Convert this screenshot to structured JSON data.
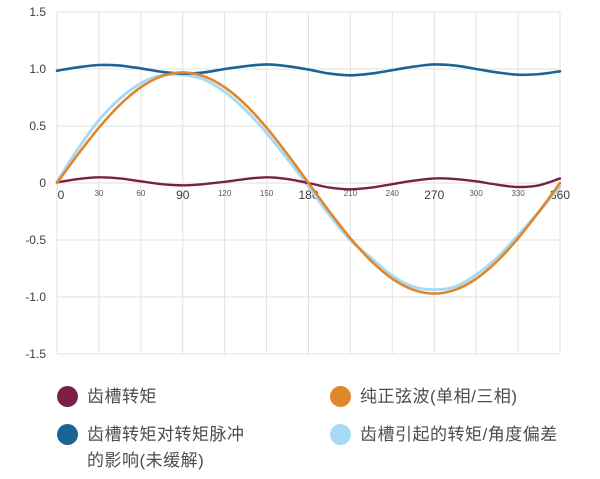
{
  "chart_data": {
    "type": "line",
    "title": "",
    "xlabel": "",
    "ylabel": "",
    "xlim": [
      0,
      360
    ],
    "ylim": [
      -1.5,
      1.5
    ],
    "grid": true,
    "legend_position": "bottom",
    "x_ticks": [
      {
        "label": "0",
        "value": 0,
        "major": true
      },
      {
        "label": "30",
        "value": 30,
        "major": false
      },
      {
        "label": "60",
        "value": 60,
        "major": false
      },
      {
        "label": "90",
        "value": 90,
        "major": true
      },
      {
        "label": "120",
        "value": 120,
        "major": false
      },
      {
        "label": "150",
        "value": 150,
        "major": false
      },
      {
        "label": "180",
        "value": 180,
        "major": true
      },
      {
        "label": "210",
        "value": 210,
        "major": false
      },
      {
        "label": "240",
        "value": 240,
        "major": false
      },
      {
        "label": "270",
        "value": 270,
        "major": true
      },
      {
        "label": "300",
        "value": 300,
        "major": false
      },
      {
        "label": "330",
        "value": 330,
        "major": false
      },
      {
        "label": "360",
        "value": 360,
        "major": true
      }
    ],
    "y_ticks": [
      {
        "label": "1.5",
        "value": 1.5
      },
      {
        "label": "1.0",
        "value": 1.0
      },
      {
        "label": "0.5",
        "value": 0.5
      },
      {
        "label": "0",
        "value": 0
      },
      {
        "label": "-0.5",
        "value": -0.5
      },
      {
        "label": "-1.0",
        "value": -1.0
      },
      {
        "label": "-1.5",
        "value": -1.5
      }
    ],
    "x": [
      0,
      15,
      30,
      45,
      60,
      75,
      90,
      105,
      120,
      135,
      150,
      165,
      180,
      195,
      210,
      225,
      240,
      255,
      270,
      285,
      300,
      315,
      330,
      345,
      360
    ],
    "series": [
      {
        "id": "cogging-torque",
        "name": "齿槽转矩",
        "color": "#7b1f49",
        "width": 2.4,
        "values": [
          0.005,
          0.035,
          0.05,
          0.04,
          0.015,
          -0.01,
          -0.02,
          -0.01,
          0.01,
          0.035,
          0.05,
          0.035,
          0,
          -0.04,
          -0.055,
          -0.04,
          -0.01,
          0.02,
          0.04,
          0.035,
          0.015,
          -0.015,
          -0.035,
          -0.02,
          0.04
        ]
      },
      {
        "id": "pure-sine-wave",
        "name": "纯正弦波(单相/三相)",
        "color": "#e0862b",
        "width": 2.6,
        "values": [
          0,
          0.251,
          0.485,
          0.686,
          0.84,
          0.937,
          0.97,
          0.937,
          0.84,
          0.686,
          0.485,
          0.251,
          0,
          -0.251,
          -0.485,
          -0.686,
          -0.84,
          -0.937,
          -0.97,
          -0.937,
          -0.84,
          -0.686,
          -0.485,
          -0.251,
          0
        ]
      },
      {
        "id": "torque-ripple-unmitigated",
        "name": "齿槽转矩对转矩脉冲的影响(未缓解)",
        "color": "#1c6396",
        "width": 2.6,
        "values": [
          0.985,
          1.015,
          1.035,
          1.03,
          1.005,
          0.975,
          0.96,
          0.97,
          1.0,
          1.025,
          1.04,
          1.025,
          0.995,
          0.96,
          0.945,
          0.96,
          0.99,
          1.02,
          1.04,
          1.03,
          1.0,
          0.97,
          0.95,
          0.955,
          0.98
        ]
      },
      {
        "id": "cogging-induced-deviation",
        "name": "齿槽引起的转矩/角度偏差",
        "color": "#a8daf3",
        "width": 3,
        "values": [
          0.01,
          0.3,
          0.55,
          0.74,
          0.875,
          0.945,
          0.95,
          0.91,
          0.8,
          0.64,
          0.44,
          0.21,
          -0.03,
          -0.28,
          -0.5,
          -0.66,
          -0.815,
          -0.91,
          -0.935,
          -0.91,
          -0.805,
          -0.655,
          -0.46,
          -0.25,
          -0.03
        ]
      }
    ]
  },
  "legend": {
    "items": [
      {
        "label": "齿槽转矩",
        "color": "#7b1f49"
      },
      {
        "label": "纯正弦波(单相/三相)",
        "color": "#e0862b"
      },
      {
        "label": "齿槽转矩对转矩脉冲\n的影响(未缓解)",
        "color": "#1c6396"
      },
      {
        "label": "齿槽引起的转矩/角度偏差",
        "color": "#a8daf3"
      }
    ]
  },
  "style": {
    "grid_color": "#e2e2e2",
    "tick_major_color": "#3d3d3d",
    "tick_minor_color": "#5a5a5a",
    "y_tick_color": "#3d3d3d",
    "background": "#ffffff"
  }
}
